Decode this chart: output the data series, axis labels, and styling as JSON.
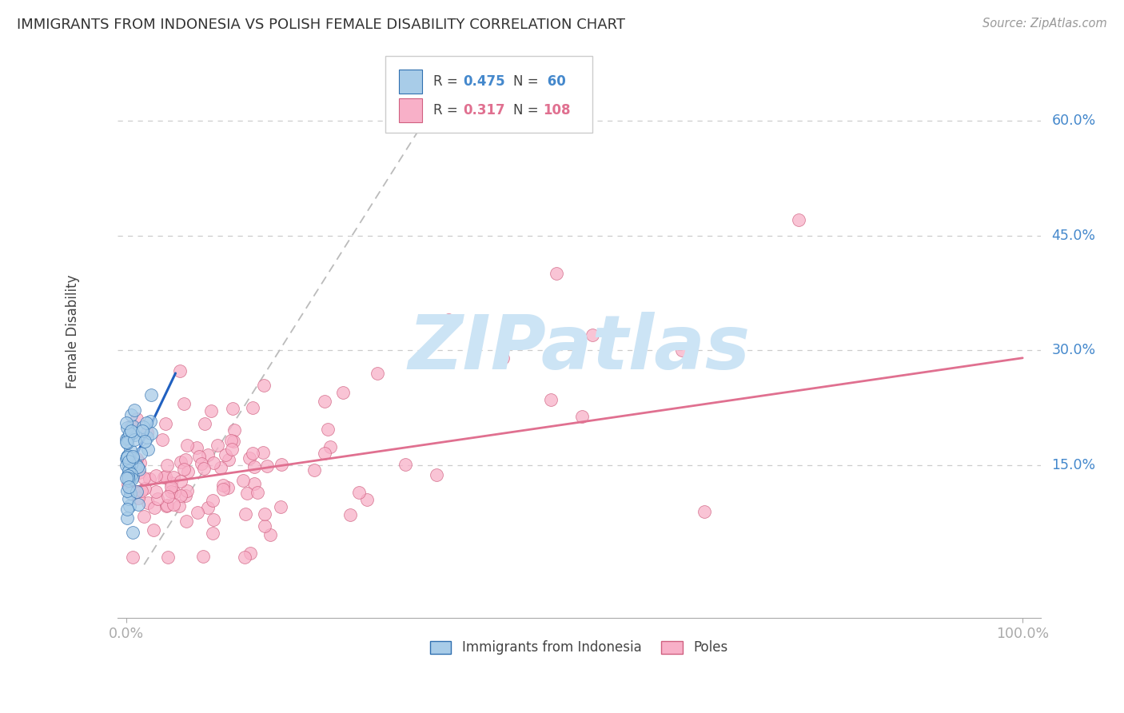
{
  "title": "IMMIGRANTS FROM INDONESIA VS POLISH FEMALE DISABILITY CORRELATION CHART",
  "source": "Source: ZipAtlas.com",
  "ylabel": "Female Disability",
  "xlim": [
    -0.01,
    1.02
  ],
  "ylim": [
    -0.05,
    0.7
  ],
  "ytick_vals": [
    0.15,
    0.3,
    0.45,
    0.6
  ],
  "ytick_labels": [
    "15.0%",
    "30.0%",
    "45.0%",
    "60.0%"
  ],
  "xtick_vals": [
    0.0,
    1.0
  ],
  "xtick_labels": [
    "0.0%",
    "100.0%"
  ],
  "legend_label1": "Immigrants from Indonesia",
  "legend_label2": "Poles",
  "blue_fill": "#a8cce8",
  "blue_edge": "#3070b0",
  "blue_line": "#2060c0",
  "pink_fill": "#f8b0c8",
  "pink_edge": "#d06080",
  "pink_line": "#e07090",
  "gray_dash": "#bbbbbb",
  "background_color": "#ffffff",
  "grid_color": "#cccccc",
  "tick_label_color": "#4488cc",
  "title_color": "#333333",
  "watermark_color": "#cce4f5",
  "watermark_text": "ZIPatlas",
  "R_blue": 0.475,
  "N_blue": 60,
  "R_pink": 0.317,
  "N_pink": 108,
  "blue_seed": 42,
  "pink_seed": 123,
  "pink_line_x0": 0.0,
  "pink_line_y0": 0.12,
  "pink_line_x1": 1.0,
  "pink_line_y1": 0.29,
  "blue_line_x0": 0.0,
  "blue_line_y0": 0.135,
  "blue_line_x1": 0.055,
  "blue_line_y1": 0.27,
  "gray_line_x0": 0.02,
  "gray_line_y0": 0.02,
  "gray_line_x1": 0.36,
  "gray_line_y1": 0.65
}
